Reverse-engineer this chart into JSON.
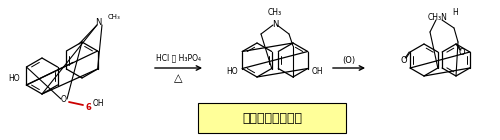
{
  "background": "#ffffff",
  "black": "#000000",
  "red_color": "#cc0000",
  "label6": "6",
  "arrow1_text_top": "HCl 或 H₃PO₄",
  "arrow1_text_bottom": "△",
  "arrow2_text": "(O)",
  "label_apomorphine": "阿扑吗啡（催吐）",
  "label_apomorphine_bg": "#ffff99"
}
